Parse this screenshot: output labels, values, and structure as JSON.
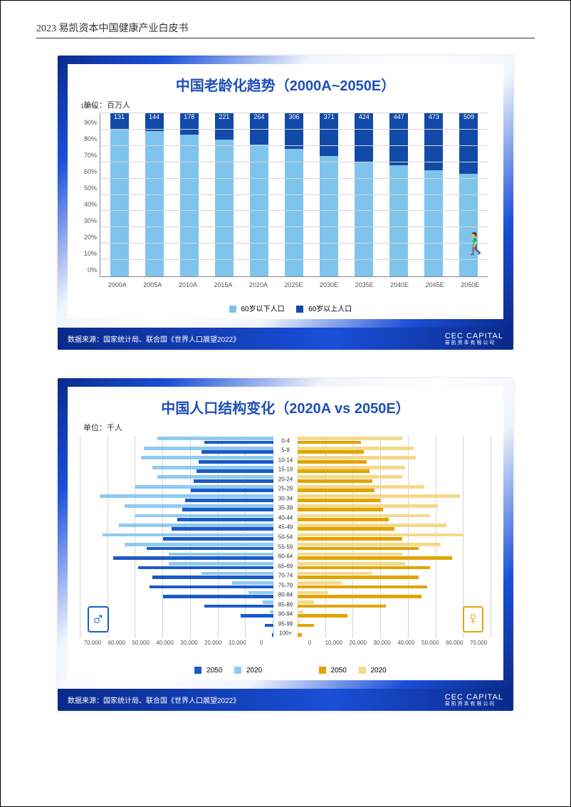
{
  "doc_header": "2023 易凯资本中国健康产业白皮书",
  "card_footer_brand": "CEC CAPITAL",
  "card_footer_brand_sub": "易 凯 资 本 有 限 公 司",
  "chart1": {
    "title": "中国老龄化趋势（2000A~2050E）",
    "unit": "单位：百万人",
    "y_ticks": [
      "0%",
      "10%",
      "20%",
      "30%",
      "40%",
      "50%",
      "60%",
      "70%",
      "80%",
      "90%",
      "100%"
    ],
    "categories": [
      "2000A",
      "2005A",
      "2010A",
      "2015A",
      "2020A",
      "2025E",
      "2030E",
      "2035E",
      "2040E",
      "2045E",
      "2050E"
    ],
    "under60_pct": [
      90,
      89,
      87,
      84,
      81,
      78,
      74,
      70,
      68,
      65,
      63
    ],
    "over60_pct": [
      10,
      11,
      13,
      16,
      19,
      22,
      26,
      30,
      32,
      35,
      37
    ],
    "value_labels": [
      "131",
      "144",
      "178",
      "221",
      "264",
      "306",
      "371",
      "424",
      "447",
      "473",
      "509"
    ],
    "legend_under": "60岁以下人口",
    "legend_over": "60岁以上人口",
    "color_under": "#7fc4ec",
    "color_over": "#124aa8",
    "source": "数据来源：国家统计局、联合国《世界人口展望2022》"
  },
  "chart2": {
    "title": "中国人口结构变化（2020A vs 2050E）",
    "unit": "单位：千人",
    "age_groups": [
      "0-4",
      "5-9",
      "10-14",
      "15-19",
      "20-24",
      "25-29",
      "30-34",
      "35-39",
      "40-44",
      "45-49",
      "50-54",
      "55-59",
      "60-64",
      "65-69",
      "70-74",
      "75-79",
      "80-84",
      "85-89",
      "90-94",
      "95-99",
      "100+"
    ],
    "male_2020": [
      42000,
      47000,
      48000,
      44000,
      42000,
      50000,
      63000,
      54000,
      50000,
      56000,
      62000,
      54000,
      38000,
      38000,
      26000,
      15000,
      9000,
      4000,
      1200,
      300,
      50
    ],
    "male_2050": [
      25000,
      26000,
      27000,
      28000,
      29000,
      30000,
      32000,
      33000,
      35000,
      37000,
      40000,
      46000,
      58000,
      49000,
      44000,
      45000,
      40000,
      25000,
      12000,
      3000,
      600
    ],
    "female_2020": [
      38000,
      42000,
      43000,
      39000,
      38000,
      46000,
      59000,
      51000,
      48000,
      54000,
      60000,
      52000,
      38000,
      39000,
      27000,
      16000,
      11000,
      6000,
      2000,
      500,
      100
    ],
    "female_2050": [
      23000,
      24000,
      25000,
      26000,
      27000,
      28000,
      30000,
      31000,
      33000,
      35000,
      38000,
      44000,
      56000,
      48000,
      44000,
      47000,
      45000,
      32000,
      18000,
      6000,
      1500
    ],
    "x_max": 70000,
    "x_ticks_left": [
      "70,000",
      "60,000",
      "50,000",
      "40,000",
      "30,000",
      "20,000",
      "10,000",
      "0"
    ],
    "x_ticks_right": [
      "0",
      "10,000",
      "20,000",
      "30,000",
      "40,000",
      "50,000",
      "60,000",
      "70,000"
    ],
    "legend_m2050": "2050",
    "legend_m2020": "2020",
    "legend_f2050": "2050",
    "legend_f2020": "2020",
    "color_m2050": "#1a5bc8",
    "color_m2020": "#8fcaf2",
    "color_f2050": "#e0a400",
    "color_f2020": "#f5d98a",
    "male_symbol": "♂",
    "female_symbol": "♀",
    "source": "数据来源：国家统计局、联合国《世界人口展望2022》"
  }
}
